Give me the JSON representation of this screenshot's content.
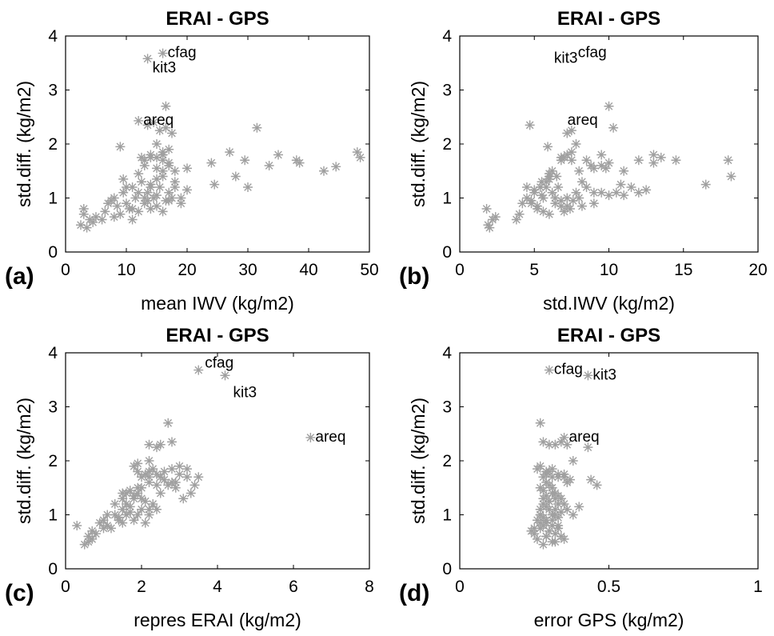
{
  "colors": {
    "marker": "#a0a0a0",
    "axis": "#000000",
    "background": "#ffffff"
  },
  "chart_data": [
    {
      "type": "scatter",
      "panel_label": "(a)",
      "title": "ERAI - GPS",
      "xlabel": "mean IWV (kg/m2)",
      "ylabel": "std.diff. (kg/m2)",
      "xlim": [
        0,
        50
      ],
      "ylim": [
        0,
        4
      ],
      "xticks": [
        0,
        10,
        20,
        30,
        40,
        50
      ],
      "yticks": [
        0,
        1,
        2,
        3,
        4
      ],
      "grid": false,
      "marker": "asterisk",
      "x": [
        2.5,
        3.0,
        3.5,
        4.0,
        5.0,
        6.0,
        7.0,
        7.5,
        8.0,
        8.5,
        9.0,
        9.5,
        10.0,
        10.5,
        11.0,
        11.5,
        12.0,
        12.5,
        13.0,
        13.5,
        14.0,
        14.5,
        15.0,
        15.5,
        16.0,
        16.5,
        17.0,
        17.5,
        18.0,
        19.0,
        20.0,
        9.5,
        10.0,
        11.0,
        12.0,
        13.0,
        14.0,
        15.0,
        16.0,
        17.0,
        18.0,
        19.0,
        20.0,
        13.0,
        14.0,
        15.0,
        16.0,
        17.0,
        18.0,
        12.0,
        13.0,
        14.0,
        15.0,
        16.0,
        15.0,
        16.0,
        17.0,
        14.0,
        15.0,
        16.0,
        9.0,
        12.5,
        13.5,
        14.5,
        15.5,
        16.5,
        17.5,
        16.0,
        17.0,
        16.5,
        12.0,
        16.0,
        13.5,
        24.0,
        24.5,
        27.0,
        28.0,
        29.5,
        30.0,
        31.5,
        33.5,
        35.0,
        38.0,
        38.5,
        42.5,
        44.5,
        48.0,
        48.5,
        3.0,
        4.5,
        6.5,
        8.0,
        11.0,
        13.5
      ],
      "y": [
        0.5,
        0.8,
        0.45,
        0.6,
        0.65,
        0.6,
        0.9,
        0.95,
        1.0,
        0.85,
        0.7,
        1.1,
        1.2,
        0.8,
        0.6,
        1.0,
        0.75,
        1.3,
        0.9,
        1.1,
        0.8,
        1.0,
        0.85,
        1.2,
        0.75,
        0.95,
        1.1,
        1.0,
        1.3,
        0.9,
        1.15,
        1.35,
        0.9,
        1.2,
        1.1,
        1.0,
        1.25,
        1.05,
        1.4,
        0.95,
        1.2,
        1.0,
        1.55,
        1.7,
        1.8,
        1.75,
        1.85,
        1.65,
        1.5,
        1.45,
        1.6,
        1.75,
        1.55,
        1.8,
        2.0,
        1.7,
        1.6,
        1.2,
        1.35,
        1.5,
        1.95,
        1.75,
        2.35,
        2.4,
        2.25,
        2.3,
        2.2,
        1.8,
        1.9,
        2.7,
        2.43,
        3.68,
        3.58,
        1.65,
        1.25,
        1.85,
        1.4,
        1.7,
        1.2,
        2.3,
        1.6,
        1.8,
        1.7,
        1.65,
        1.5,
        1.58,
        1.85,
        1.75,
        0.7,
        0.55,
        0.75,
        0.65,
        0.8,
        0.95
      ],
      "annotations": [
        {
          "text": "cfag",
          "x": 16.0,
          "y": 3.68
        },
        {
          "text": "kit3",
          "x": 13.5,
          "y": 3.58
        },
        {
          "text": "areq",
          "x": 12.0,
          "y": 2.43
        }
      ]
    },
    {
      "type": "scatter",
      "panel_label": "(b)",
      "title": "ERAI - GPS",
      "xlabel": "std.IWV (kg/m2)",
      "ylabel": "std.diff. (kg/m2)",
      "xlim": [
        0,
        20
      ],
      "ylim": [
        0,
        4
      ],
      "xticks": [
        0,
        5,
        10,
        15,
        20
      ],
      "yticks": [
        0,
        1,
        2,
        3,
        4
      ],
      "grid": false,
      "marker": "asterisk",
      "x": [
        1.8,
        1.9,
        2.0,
        2.2,
        2.4,
        3.8,
        4.0,
        4.2,
        4.5,
        4.8,
        5.0,
        5.2,
        5.4,
        5.6,
        5.8,
        6.0,
        6.2,
        6.4,
        6.6,
        6.8,
        7.0,
        7.2,
        7.4,
        7.6,
        7.8,
        8.0,
        8.2,
        8.5,
        9.0,
        9.5,
        10.0,
        5.5,
        5.8,
        6.0,
        6.2,
        6.5,
        6.8,
        7.0,
        7.2,
        7.5,
        5.0,
        5.5,
        6.0,
        6.4,
        6.8,
        7.2,
        4.5,
        4.8,
        5.2,
        5.6,
        6.0,
        8.0,
        8.5,
        9.0,
        9.5,
        10.0,
        10.5,
        11.0,
        11.5,
        12.0,
        13.0,
        13.5,
        14.5,
        16.5,
        18.0,
        18.2,
        12.0,
        11.0,
        10.3,
        10.0,
        9.8,
        9.5,
        8.8,
        7.8,
        7.5,
        6.8,
        7.5,
        5.9,
        4.7,
        7.2,
        9.0,
        10.8,
        12.5,
        13.0,
        8.2
      ],
      "y": [
        0.8,
        0.5,
        0.45,
        0.6,
        0.65,
        0.6,
        0.7,
        0.9,
        1.0,
        0.95,
        1.1,
        0.8,
        1.2,
        1.0,
        1.3,
        1.4,
        1.1,
        0.9,
        1.2,
        0.85,
        0.75,
        1.0,
        0.8,
        0.95,
        1.1,
        1.0,
        1.3,
        1.2,
        0.9,
        1.1,
        1.05,
        1.05,
        1.2,
        1.35,
        1.5,
        1.4,
        1.7,
        1.75,
        1.8,
        1.7,
        1.15,
        1.3,
        1.45,
        1.0,
        0.95,
        0.85,
        1.2,
        0.9,
        0.85,
        0.75,
        0.7,
        1.5,
        1.7,
        1.55,
        1.6,
        1.65,
        1.1,
        1.5,
        1.2,
        1.7,
        1.65,
        1.75,
        1.7,
        1.25,
        1.7,
        1.4,
        1.1,
        1.05,
        2.3,
        2.7,
        1.55,
        1.8,
        1.6,
        2.0,
        1.85,
        1.75,
        2.25,
        1.95,
        2.35,
        2.2,
        1.1,
        1.25,
        1.15,
        1.8,
        0.85
      ],
      "annotations": [
        {
          "text": "kit3",
          "x": 6.0,
          "y": 3.58
        },
        {
          "text": "cfag",
          "x": 7.6,
          "y": 3.68
        },
        {
          "text": "areq",
          "x": 6.9,
          "y": 2.43
        }
      ]
    },
    {
      "type": "scatter",
      "panel_label": "(c)",
      "title": "ERAI - GPS",
      "xlabel": "repres ERAI (kg/m2)",
      "ylabel": "std.diff. (kg/m2)",
      "xlim": [
        0,
        8
      ],
      "ylim": [
        0,
        4
      ],
      "xticks": [
        0,
        2,
        4,
        6,
        8
      ],
      "yticks": [
        0,
        1,
        2,
        3,
        4
      ],
      "grid": false,
      "marker": "asterisk",
      "x": [
        0.3,
        0.5,
        0.6,
        0.7,
        0.8,
        0.9,
        1.0,
        1.1,
        1.2,
        1.3,
        1.4,
        1.5,
        1.6,
        1.7,
        1.8,
        1.9,
        2.0,
        2.1,
        2.2,
        2.3,
        2.4,
        1.5,
        1.6,
        1.7,
        1.8,
        1.9,
        2.0,
        2.1,
        2.2,
        1.3,
        1.4,
        1.5,
        1.6,
        1.7,
        1.8,
        1.9,
        2.0,
        2.2,
        2.4,
        2.5,
        2.6,
        2.8,
        3.0,
        3.2,
        3.4,
        3.5,
        2.0,
        2.2,
        2.4,
        2.6,
        2.8,
        3.0,
        3.2,
        1.8,
        1.9,
        2.1,
        2.2,
        2.3,
        2.5,
        2.7,
        2.9,
        3.1,
        3.3,
        2.2,
        2.4,
        2.5,
        2.8,
        2.7,
        2.2,
        1.9,
        2.9,
        1.1,
        0.6,
        0.7,
        1.0,
        1.5,
        3.5,
        4.2,
        6.45
      ],
      "y": [
        0.8,
        0.45,
        0.6,
        0.55,
        0.65,
        0.85,
        0.9,
        0.8,
        0.75,
        1.0,
        0.95,
        1.1,
        1.2,
        1.05,
        0.9,
        1.0,
        1.1,
        0.85,
        1.0,
        1.2,
        1.1,
        1.3,
        1.4,
        1.45,
        1.35,
        1.5,
        1.3,
        1.25,
        1.1,
        1.2,
        0.9,
        0.85,
        1.0,
        1.15,
        1.3,
        1.4,
        1.5,
        1.6,
        1.55,
        1.7,
        1.8,
        1.6,
        1.75,
        1.85,
        1.55,
        1.7,
        1.7,
        1.8,
        1.75,
        1.65,
        1.85,
        1.9,
        1.7,
        1.9,
        1.8,
        1.75,
        1.7,
        1.85,
        1.4,
        1.55,
        1.6,
        1.3,
        1.4,
        2.3,
        2.25,
        2.3,
        2.35,
        2.7,
        2.0,
        1.95,
        1.5,
        1.0,
        0.5,
        0.7,
        0.75,
        1.4,
        3.68,
        3.58,
        2.43
      ],
      "annotations": [
        {
          "text": "cfag",
          "x": 3.5,
          "y": 3.68
        },
        {
          "text": "kit3",
          "x": 4.2,
          "y": 3.58
        },
        {
          "text": "areq",
          "x": 6.45,
          "y": 2.43
        }
      ]
    },
    {
      "type": "scatter",
      "panel_label": "(d)",
      "title": "ERAI - GPS",
      "xlabel": "error GPS (kg/m2)",
      "ylabel": "std.diff. (kg/m2)",
      "xlim": [
        0,
        1
      ],
      "ylim": [
        0,
        4
      ],
      "xticks": [
        0,
        0.5,
        1
      ],
      "yticks": [
        0,
        1,
        2,
        3,
        4
      ],
      "grid": false,
      "marker": "asterisk",
      "x": [
        0.24,
        0.25,
        0.26,
        0.27,
        0.28,
        0.29,
        0.3,
        0.31,
        0.32,
        0.33,
        0.34,
        0.35,
        0.26,
        0.27,
        0.28,
        0.29,
        0.3,
        0.31,
        0.32,
        0.33,
        0.34,
        0.27,
        0.28,
        0.29,
        0.3,
        0.31,
        0.32,
        0.33,
        0.28,
        0.29,
        0.3,
        0.31,
        0.32,
        0.27,
        0.28,
        0.29,
        0.3,
        0.31,
        0.32,
        0.33,
        0.34,
        0.35,
        0.36,
        0.38,
        0.4,
        0.28,
        0.29,
        0.3,
        0.31,
        0.33,
        0.35,
        0.37,
        0.26,
        0.27,
        0.29,
        0.31,
        0.33,
        0.36,
        0.27,
        0.29,
        0.31,
        0.33,
        0.25,
        0.27,
        0.29,
        0.27,
        0.28,
        0.3,
        0.32,
        0.34,
        0.36,
        0.38,
        0.44,
        0.46,
        0.28,
        0.32,
        0.35,
        0.43,
        0.3,
        0.43,
        0.35
      ],
      "y": [
        0.7,
        0.65,
        0.55,
        0.75,
        0.8,
        0.6,
        0.7,
        0.5,
        0.65,
        0.75,
        0.6,
        0.55,
        0.9,
        1.0,
        0.95,
        0.85,
        1.1,
        0.9,
        1.0,
        0.8,
        1.05,
        1.1,
        1.2,
        1.15,
        1.25,
        1.0,
        1.1,
        1.2,
        1.3,
        1.35,
        1.25,
        1.4,
        1.3,
        1.5,
        1.45,
        1.6,
        1.55,
        1.5,
        1.4,
        1.35,
        1.3,
        1.2,
        1.1,
        1.0,
        1.15,
        1.7,
        1.75,
        1.8,
        1.85,
        1.7,
        1.75,
        1.65,
        1.85,
        1.9,
        1.8,
        1.7,
        1.75,
        1.6,
        1.0,
        0.9,
        0.8,
        0.95,
        0.75,
        0.85,
        0.6,
        2.7,
        2.35,
        2.3,
        2.3,
        2.35,
        2.3,
        2.0,
        1.65,
        1.55,
        0.45,
        0.5,
        1.7,
        2.25,
        3.68,
        3.58,
        2.43
      ],
      "annotations": [
        {
          "text": "cfag",
          "x": 0.3,
          "y": 3.68
        },
        {
          "text": "kit3",
          "x": 0.43,
          "y": 3.58
        },
        {
          "text": "areq",
          "x": 0.35,
          "y": 2.43
        }
      ]
    }
  ]
}
